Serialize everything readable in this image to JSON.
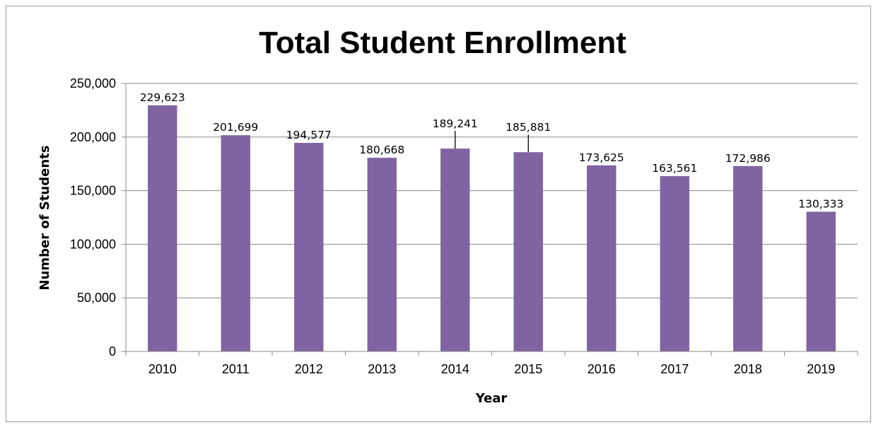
{
  "chart_data": {
    "type": "bar",
    "title": "Total Student Enrollment",
    "xlabel": "Year",
    "ylabel": "Number of Students",
    "categories": [
      "2010",
      "2011",
      "2012",
      "2013",
      "2014",
      "2015",
      "2016",
      "2017",
      "2018",
      "2019"
    ],
    "values": [
      229623,
      201699,
      194577,
      180668,
      189241,
      185881,
      173625,
      163561,
      172986,
      130333
    ],
    "data_labels": [
      "229,623",
      "201,699",
      "194,577",
      "180,668",
      "189,241",
      "185,881",
      "173,625",
      "163,561",
      "172,986",
      "130,333"
    ],
    "ylim": [
      0,
      250000
    ],
    "yticks": [
      0,
      50000,
      100000,
      150000,
      200000,
      250000
    ],
    "ytick_labels": [
      "0",
      "50,000",
      "100,000",
      "150,000",
      "200,000",
      "250,000"
    ],
    "grid": true,
    "legend": "none",
    "bar_color": "#8064a2",
    "leader_lines": [
      "2014",
      "2015"
    ]
  }
}
